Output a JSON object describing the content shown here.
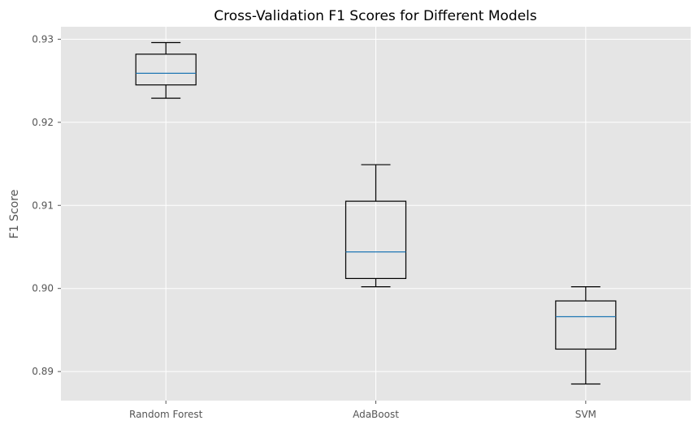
{
  "chart_data": {
    "type": "box",
    "title": "Cross-Validation F1 Scores for Different Models",
    "xlabel": "",
    "ylabel": "F1 Score",
    "categories": [
      "Random Forest",
      "AdaBoost",
      "SVM"
    ],
    "boxes": [
      {
        "category": "Random Forest",
        "whisker_low": 0.9229,
        "q1": 0.9245,
        "median": 0.9259,
        "q3": 0.9282,
        "whisker_high": 0.9296
      },
      {
        "category": "AdaBoost",
        "whisker_low": 0.9002,
        "q1": 0.9012,
        "median": 0.9044,
        "q3": 0.9105,
        "whisker_high": 0.9149
      },
      {
        "category": "SVM",
        "whisker_low": 0.8885,
        "q1": 0.8927,
        "median": 0.8966,
        "q3": 0.8985,
        "whisker_high": 0.9002
      }
    ],
    "ylim": [
      0.8865,
      0.9315
    ],
    "yticks": [
      "0.89",
      "0.90",
      "0.91",
      "0.92",
      "0.93"
    ],
    "grid": true,
    "colors": {
      "background": "#e5e5e5",
      "grid": "#ffffff",
      "box": "#000000",
      "median": "#1f77b4"
    }
  }
}
